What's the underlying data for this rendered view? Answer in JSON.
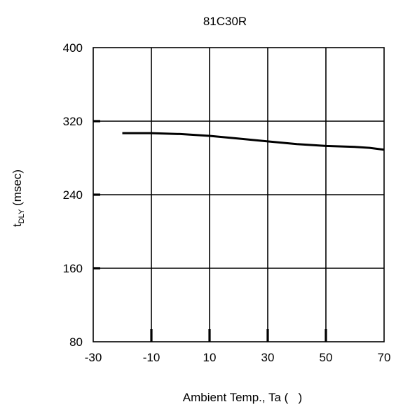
{
  "chart_data": {
    "type": "line",
    "title": "81C30R",
    "xlabel": "Ambient Temp., Ta (   )",
    "ylabel_main": "t",
    "ylabel_sub": "DLY",
    "ylabel_unit": " (msec)",
    "xlim": [
      -30,
      70
    ],
    "ylim": [
      80,
      400
    ],
    "x_ticks": [
      -30,
      -10,
      10,
      30,
      50,
      70
    ],
    "y_ticks": [
      80,
      160,
      240,
      320,
      400
    ],
    "grid": true,
    "legend": "none",
    "series": [
      {
        "x": [
          -20,
          -10,
          0,
          10,
          20,
          30,
          40,
          50,
          60,
          65,
          70
        ],
        "y": [
          307,
          307,
          306,
          304,
          301,
          298,
          295,
          293,
          292,
          291,
          289
        ]
      }
    ]
  },
  "colors": {
    "line": "#000000",
    "grid": "#000000",
    "background": "#ffffff"
  }
}
